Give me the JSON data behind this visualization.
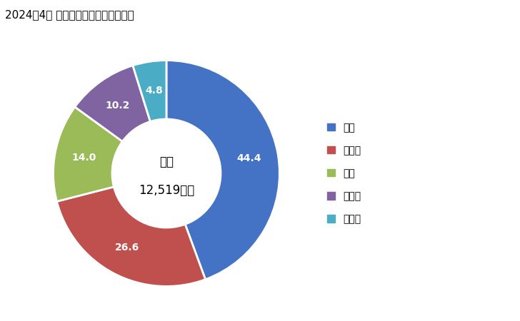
{
  "title": "2024年4月 輸入相手国のシェア（％）",
  "labels": [
    "英国",
    "スイス",
    "中国",
    "カナダ",
    "その他"
  ],
  "values": [
    44.4,
    26.6,
    14.0,
    10.2,
    4.8
  ],
  "colors": [
    "#4472C4",
    "#C0504D",
    "#9BBB59",
    "#8064A2",
    "#4BACC6"
  ],
  "center_label1": "総額",
  "center_label2": "12,519万円",
  "bg_color": "#FFFFFF",
  "title_fontsize": 11,
  "legend_fontsize": 10,
  "label_fontsize": 10
}
